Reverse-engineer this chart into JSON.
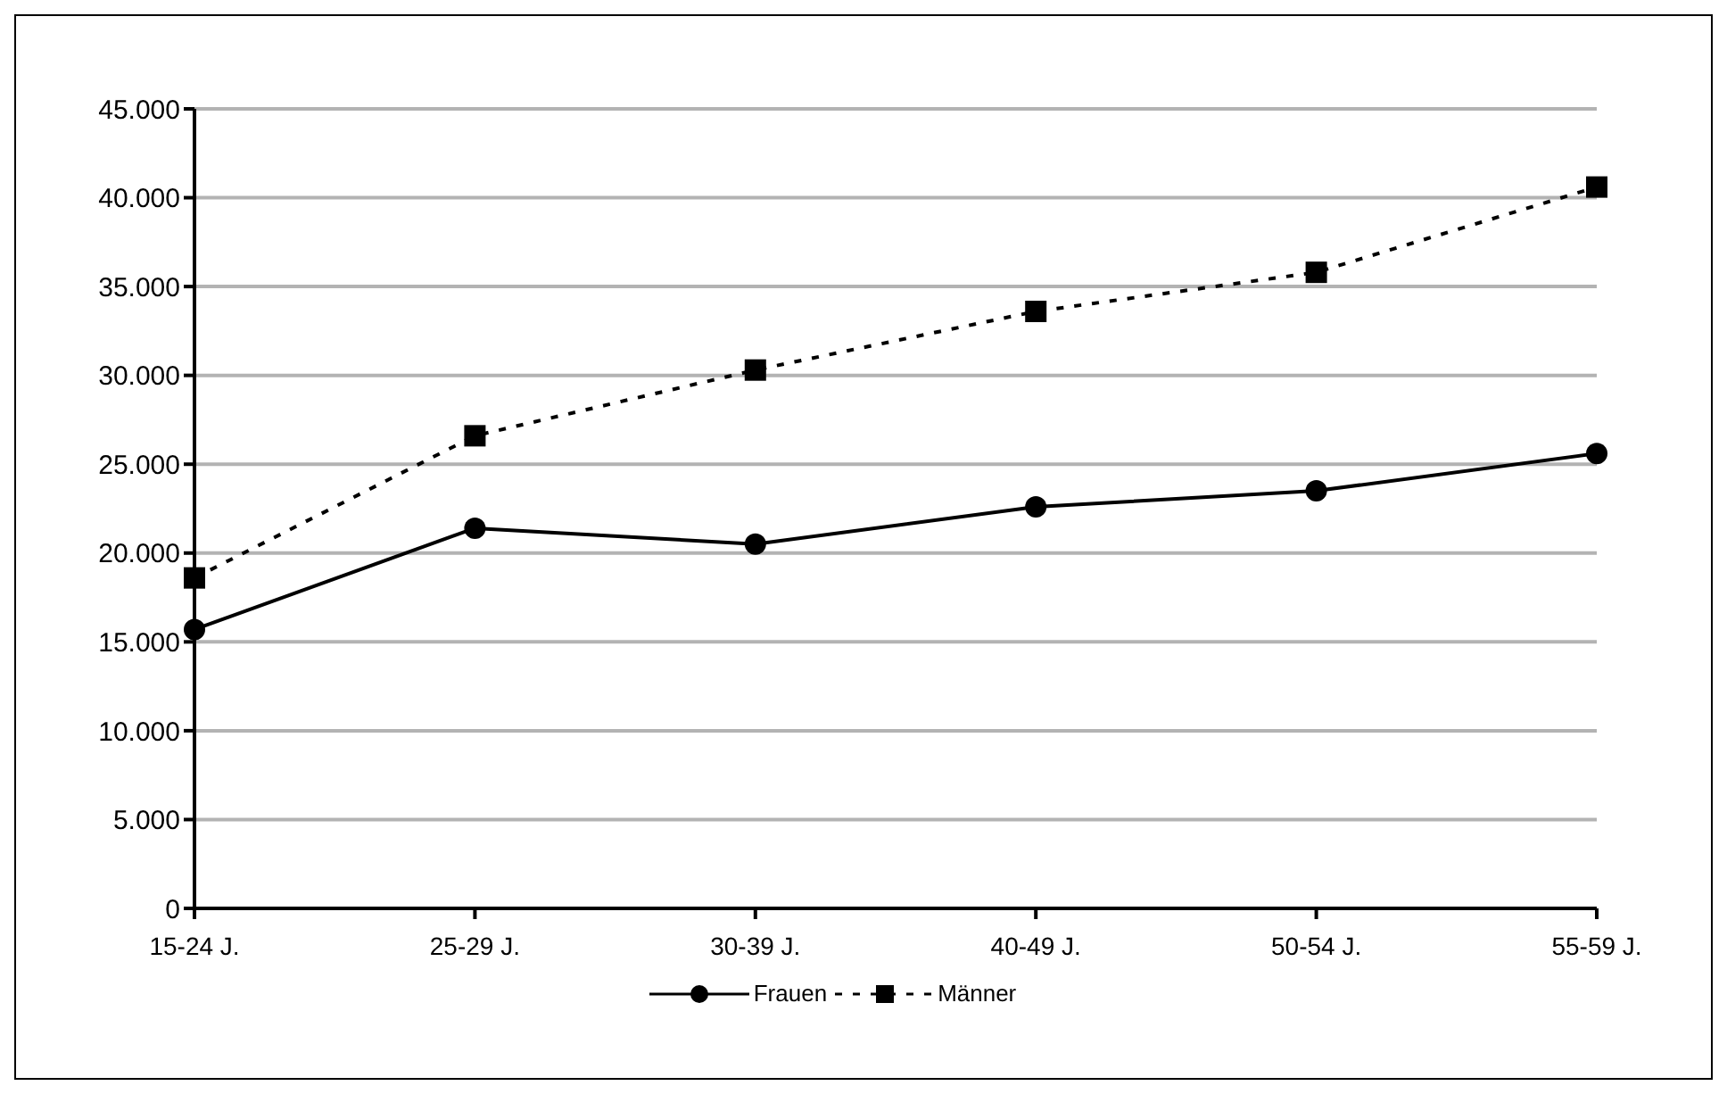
{
  "chart_data": {
    "type": "line",
    "categories": [
      "15-24 J.",
      "25-29 J.",
      "30-39 J.",
      "40-49 J.",
      "50-54 J.",
      "55-59 J."
    ],
    "series": [
      {
        "name": "Frauen",
        "color": "#000000",
        "marker": "circle",
        "line_style": "solid",
        "values": [
          15700,
          21400,
          20500,
          22600,
          23500,
          25600
        ]
      },
      {
        "name": "Männer",
        "color": "#000000",
        "marker": "square",
        "line_style": "dashed",
        "values": [
          18600,
          26600,
          30300,
          33600,
          35800,
          40600
        ]
      }
    ],
    "ylim": [
      0,
      45000
    ],
    "yticks": [
      {
        "value": 0,
        "label": "0"
      },
      {
        "value": 5000,
        "label": "5.000"
      },
      {
        "value": 10000,
        "label": "10.000"
      },
      {
        "value": 15000,
        "label": "15.000"
      },
      {
        "value": 20000,
        "label": "20.000"
      },
      {
        "value": 25000,
        "label": "25.000"
      },
      {
        "value": 30000,
        "label": "30.000"
      },
      {
        "value": 35000,
        "label": "35.000"
      },
      {
        "value": 40000,
        "label": "40.000"
      },
      {
        "value": 45000,
        "label": "45.000"
      }
    ],
    "grid": "y",
    "legend": "bottom"
  }
}
